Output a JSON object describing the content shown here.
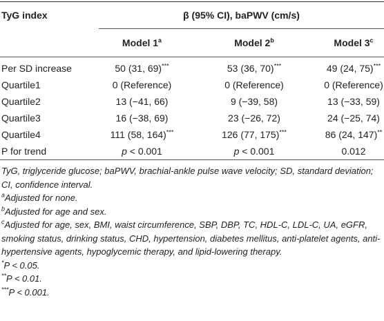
{
  "table": {
    "header": {
      "index": "TyG index",
      "group": "β (95% CI), baPWV (cm/s)",
      "models": [
        {
          "text": "Model 1",
          "sup": "a"
        },
        {
          "text": "Model 2",
          "sup": "b"
        },
        {
          "text": "Model 3",
          "sup": "c"
        }
      ]
    },
    "rows": [
      [
        "Per SD increase",
        {
          "text": "50 (31, 69)",
          "sup": "***"
        },
        {
          "text": "53 (36, 70)",
          "sup": "***"
        },
        {
          "text": "49 (24, 75)",
          "sup": "***"
        }
      ],
      [
        "Quartile1",
        "0 (Reference)",
        "0 (Reference)",
        "0 (Reference)"
      ],
      [
        "Quartile2",
        "13 (−41, 66)",
        "9 (−39, 58)",
        "13 (−33, 59)"
      ],
      [
        "Quartile3",
        "16 (−38, 69)",
        "23 (−26, 72)",
        "24 (−25, 74)"
      ],
      [
        "Quartile4",
        {
          "text": "111 (58, 164)",
          "sup": "***"
        },
        {
          "text": "126 (77, 175)",
          "sup": "***"
        },
        {
          "text": "86 (24, 147)",
          "sup": "**"
        }
      ],
      [
        "P for trend",
        {
          "em": "p",
          "text": "< 0.001"
        },
        {
          "em": "p",
          "text": "< 0.001"
        },
        "0.012"
      ]
    ]
  },
  "footnotes": [
    {
      "text": "TyG, triglyceride glucose; baPWV, brachial-ankle pulse wave velocity; SD, standard deviation; CI, confidence interval."
    },
    {
      "sup": "a",
      "text": "Adjusted for none."
    },
    {
      "sup": "b",
      "text": "Adjusted for age and sex."
    },
    {
      "sup": "c",
      "text": "Adjusted for age, sex, BMI, waist circumference, SBP, DBP, TC, HDL-C, LDL-C, UA, eGFR, smoking status, drinking status, CHD, hypertension, diabetes mellitus, anti-platelet agents, anti-hypertensive agents, hypoglycemic therapy, and lipid-lowering therapy."
    },
    {
      "sup": "*",
      "text": "P < 0.05."
    },
    {
      "sup": "**",
      "text": "P < 0.01."
    },
    {
      "sup": "***",
      "text": "P < 0.001."
    }
  ]
}
